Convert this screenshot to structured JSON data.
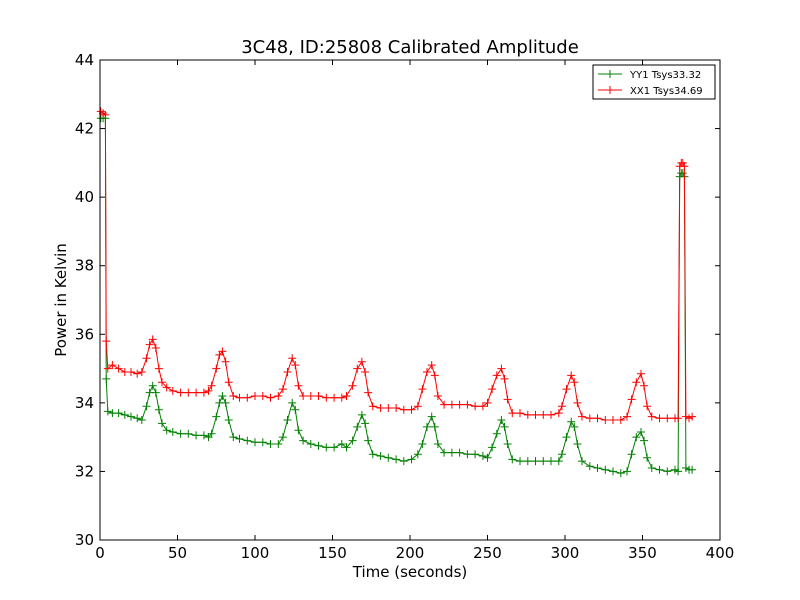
{
  "chart_data": {
    "type": "line",
    "title": "3C48, ID:25808 Calibrated Amplitude",
    "xlabel": "Time (seconds)",
    "ylabel": "Power in Kelvin",
    "xlim": [
      0,
      400
    ],
    "ylim": [
      30,
      44
    ],
    "xticks": [
      0,
      50,
      100,
      150,
      200,
      250,
      300,
      350,
      400
    ],
    "yticks": [
      30,
      32,
      34,
      36,
      38,
      40,
      42,
      44
    ],
    "grid": false,
    "legend_position": "top-right",
    "marker": "plus",
    "series": [
      {
        "name": "YY1 Tsys33.32",
        "color": "#008000",
        "points": [
          [
            0.5,
            42.3
          ],
          [
            2,
            42.3
          ],
          [
            3.5,
            42.3
          ],
          [
            4,
            34.7
          ],
          [
            5,
            33.75
          ],
          [
            8,
            33.7
          ],
          [
            12,
            33.7
          ],
          [
            16,
            33.65
          ],
          [
            20,
            33.6
          ],
          [
            24,
            33.55
          ],
          [
            27,
            33.5
          ],
          [
            30,
            33.9
          ],
          [
            32,
            34.3
          ],
          [
            34,
            34.5
          ],
          [
            36,
            34.3
          ],
          [
            38,
            33.8
          ],
          [
            40,
            33.4
          ],
          [
            43,
            33.2
          ],
          [
            47,
            33.15
          ],
          [
            52,
            33.1
          ],
          [
            57,
            33.1
          ],
          [
            62,
            33.05
          ],
          [
            67,
            33.05
          ],
          [
            70,
            33.0
          ],
          [
            72,
            33.1
          ],
          [
            75,
            33.6
          ],
          [
            77,
            34.0
          ],
          [
            79,
            34.2
          ],
          [
            81,
            34.0
          ],
          [
            83,
            33.5
          ],
          [
            86,
            33.0
          ],
          [
            90,
            32.95
          ],
          [
            95,
            32.9
          ],
          [
            100,
            32.85
          ],
          [
            105,
            32.85
          ],
          [
            110,
            32.8
          ],
          [
            115,
            32.8
          ],
          [
            118,
            33.0
          ],
          [
            121,
            33.5
          ],
          [
            124,
            34.0
          ],
          [
            126,
            33.8
          ],
          [
            128,
            33.2
          ],
          [
            131,
            32.9
          ],
          [
            136,
            32.8
          ],
          [
            141,
            32.75
          ],
          [
            146,
            32.7
          ],
          [
            151,
            32.7
          ],
          [
            156,
            32.8
          ],
          [
            159,
            32.7
          ],
          [
            163,
            32.9
          ],
          [
            166,
            33.3
          ],
          [
            169,
            33.65
          ],
          [
            171,
            33.4
          ],
          [
            173,
            32.9
          ],
          [
            176,
            32.5
          ],
          [
            181,
            32.45
          ],
          [
            186,
            32.4
          ],
          [
            191,
            32.35
          ],
          [
            196,
            32.3
          ],
          [
            201,
            32.35
          ],
          [
            205,
            32.5
          ],
          [
            208,
            32.8
          ],
          [
            211,
            33.3
          ],
          [
            214,
            33.6
          ],
          [
            216,
            33.3
          ],
          [
            218,
            32.8
          ],
          [
            222,
            32.55
          ],
          [
            227,
            32.55
          ],
          [
            232,
            32.55
          ],
          [
            237,
            32.5
          ],
          [
            242,
            32.5
          ],
          [
            247,
            32.45
          ],
          [
            250,
            32.4
          ],
          [
            253,
            32.7
          ],
          [
            256,
            33.1
          ],
          [
            259,
            33.5
          ],
          [
            261,
            33.3
          ],
          [
            263,
            32.8
          ],
          [
            266,
            32.35
          ],
          [
            271,
            32.3
          ],
          [
            276,
            32.3
          ],
          [
            281,
            32.3
          ],
          [
            286,
            32.3
          ],
          [
            291,
            32.3
          ],
          [
            296,
            32.3
          ],
          [
            298,
            32.5
          ],
          [
            301,
            33.0
          ],
          [
            304,
            33.45
          ],
          [
            306,
            33.3
          ],
          [
            308,
            32.8
          ],
          [
            311,
            32.3
          ],
          [
            316,
            32.15
          ],
          [
            321,
            32.1
          ],
          [
            326,
            32.05
          ],
          [
            331,
            32.0
          ],
          [
            336,
            31.95
          ],
          [
            340,
            32.0
          ],
          [
            343,
            32.5
          ],
          [
            346,
            33.0
          ],
          [
            349,
            33.15
          ],
          [
            351,
            32.9
          ],
          [
            353,
            32.4
          ],
          [
            356,
            32.1
          ],
          [
            361,
            32.05
          ],
          [
            366,
            32.0
          ],
          [
            371,
            32.05
          ],
          [
            373,
            32.0
          ],
          [
            374,
            40.6
          ],
          [
            375,
            40.7
          ],
          [
            376,
            40.7
          ],
          [
            377,
            40.6
          ],
          [
            378,
            32.1
          ],
          [
            380,
            32.05
          ],
          [
            382,
            32.05
          ]
        ]
      },
      {
        "name": "XX1 Tsys34.69",
        "color": "#ff0000",
        "points": [
          [
            0.5,
            42.5
          ],
          [
            2,
            42.45
          ],
          [
            3.5,
            42.4
          ],
          [
            4,
            35.8
          ],
          [
            5,
            35.0
          ],
          [
            8,
            35.1
          ],
          [
            12,
            35.0
          ],
          [
            16,
            34.9
          ],
          [
            20,
            34.9
          ],
          [
            24,
            34.85
          ],
          [
            27,
            34.9
          ],
          [
            30,
            35.3
          ],
          [
            32,
            35.7
          ],
          [
            34,
            35.85
          ],
          [
            36,
            35.6
          ],
          [
            38,
            35.0
          ],
          [
            40,
            34.6
          ],
          [
            43,
            34.45
          ],
          [
            47,
            34.35
          ],
          [
            52,
            34.3
          ],
          [
            57,
            34.3
          ],
          [
            62,
            34.3
          ],
          [
            67,
            34.3
          ],
          [
            70,
            34.35
          ],
          [
            72,
            34.5
          ],
          [
            75,
            35.0
          ],
          [
            77,
            35.4
          ],
          [
            79,
            35.5
          ],
          [
            81,
            35.2
          ],
          [
            83,
            34.6
          ],
          [
            86,
            34.2
          ],
          [
            90,
            34.15
          ],
          [
            95,
            34.15
          ],
          [
            100,
            34.2
          ],
          [
            105,
            34.2
          ],
          [
            110,
            34.15
          ],
          [
            115,
            34.2
          ],
          [
            118,
            34.4
          ],
          [
            121,
            34.9
          ],
          [
            124,
            35.3
          ],
          [
            126,
            35.1
          ],
          [
            128,
            34.5
          ],
          [
            131,
            34.2
          ],
          [
            136,
            34.2
          ],
          [
            141,
            34.2
          ],
          [
            146,
            34.15
          ],
          [
            151,
            34.15
          ],
          [
            156,
            34.15
          ],
          [
            159,
            34.2
          ],
          [
            163,
            34.5
          ],
          [
            166,
            35.0
          ],
          [
            169,
            35.2
          ],
          [
            171,
            34.9
          ],
          [
            173,
            34.3
          ],
          [
            176,
            33.9
          ],
          [
            181,
            33.85
          ],
          [
            186,
            33.85
          ],
          [
            191,
            33.85
          ],
          [
            196,
            33.8
          ],
          [
            201,
            33.8
          ],
          [
            205,
            33.9
          ],
          [
            208,
            34.4
          ],
          [
            211,
            34.9
          ],
          [
            214,
            35.1
          ],
          [
            216,
            34.8
          ],
          [
            218,
            34.2
          ],
          [
            222,
            33.95
          ],
          [
            227,
            33.95
          ],
          [
            232,
            33.95
          ],
          [
            237,
            33.95
          ],
          [
            242,
            33.9
          ],
          [
            247,
            33.9
          ],
          [
            250,
            34.0
          ],
          [
            253,
            34.4
          ],
          [
            256,
            34.8
          ],
          [
            259,
            35.0
          ],
          [
            261,
            34.7
          ],
          [
            263,
            34.1
          ],
          [
            266,
            33.7
          ],
          [
            271,
            33.7
          ],
          [
            276,
            33.65
          ],
          [
            281,
            33.65
          ],
          [
            286,
            33.65
          ],
          [
            291,
            33.65
          ],
          [
            296,
            33.7
          ],
          [
            298,
            33.9
          ],
          [
            301,
            34.4
          ],
          [
            304,
            34.8
          ],
          [
            306,
            34.6
          ],
          [
            308,
            34.0
          ],
          [
            311,
            33.6
          ],
          [
            316,
            33.55
          ],
          [
            321,
            33.55
          ],
          [
            326,
            33.5
          ],
          [
            331,
            33.5
          ],
          [
            336,
            33.5
          ],
          [
            340,
            33.6
          ],
          [
            343,
            34.1
          ],
          [
            346,
            34.6
          ],
          [
            349,
            34.85
          ],
          [
            351,
            34.5
          ],
          [
            353,
            33.9
          ],
          [
            356,
            33.6
          ],
          [
            361,
            33.55
          ],
          [
            366,
            33.55
          ],
          [
            371,
            33.55
          ],
          [
            373,
            33.55
          ],
          [
            374,
            40.9
          ],
          [
            375,
            41.0
          ],
          [
            376,
            41.0
          ],
          [
            377,
            40.9
          ],
          [
            378,
            33.6
          ],
          [
            380,
            33.55
          ],
          [
            382,
            33.6
          ]
        ]
      }
    ]
  }
}
